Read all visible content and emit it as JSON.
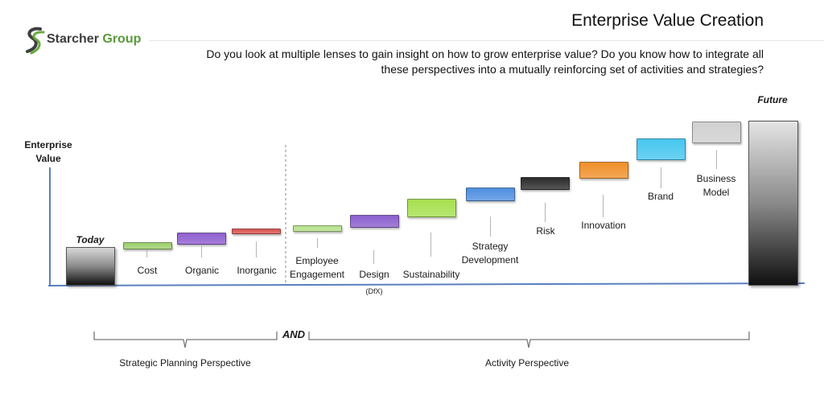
{
  "header": {
    "logo_text_1": "Starcher",
    "logo_text_2": "Group",
    "title": "Enterprise Value Creation",
    "intro": "Do you look at multiple lenses to gain insight on how to grow enterprise value?  Do you know how to integrate all these perspectives into a mutually reinforcing set of activities and strategies?"
  },
  "axis": {
    "y_label_line1": "Enterprise",
    "y_label_line2": "Value"
  },
  "endpoints": {
    "today": "Today",
    "future": "Future"
  },
  "strategic_items": [
    {
      "label": "Cost",
      "color": "#9ccf6a"
    },
    {
      "label": "Organic",
      "color": "#8f5fd0"
    },
    {
      "label": "Inorganic",
      "color": "#d9534f"
    }
  ],
  "activity_items": [
    {
      "label1": "Employee",
      "label2": "Engagement",
      "color": "#b6e28a"
    },
    {
      "label1": "Design",
      "label2": "",
      "note": "(DfX)",
      "color": "#8b5fce"
    },
    {
      "label1": "Sustainability",
      "label2": "",
      "color": "#a6e04e"
    },
    {
      "label1": "Strategy",
      "label2": "Development",
      "color": "#4f8fe0"
    },
    {
      "label1": "Risk",
      "label2": "",
      "color": "#2b2b2b"
    },
    {
      "label1": "Innovation",
      "label2": "",
      "color": "#f0902a"
    },
    {
      "label1": "Brand",
      "label2": "",
      "color": "#46c6ef"
    },
    {
      "label1": "Business",
      "label2": "Model",
      "color": "#d0d0d0"
    }
  ],
  "connector": "AND",
  "perspectives": {
    "left": "Strategic Planning Perspective",
    "right": "Activity Perspective"
  }
}
